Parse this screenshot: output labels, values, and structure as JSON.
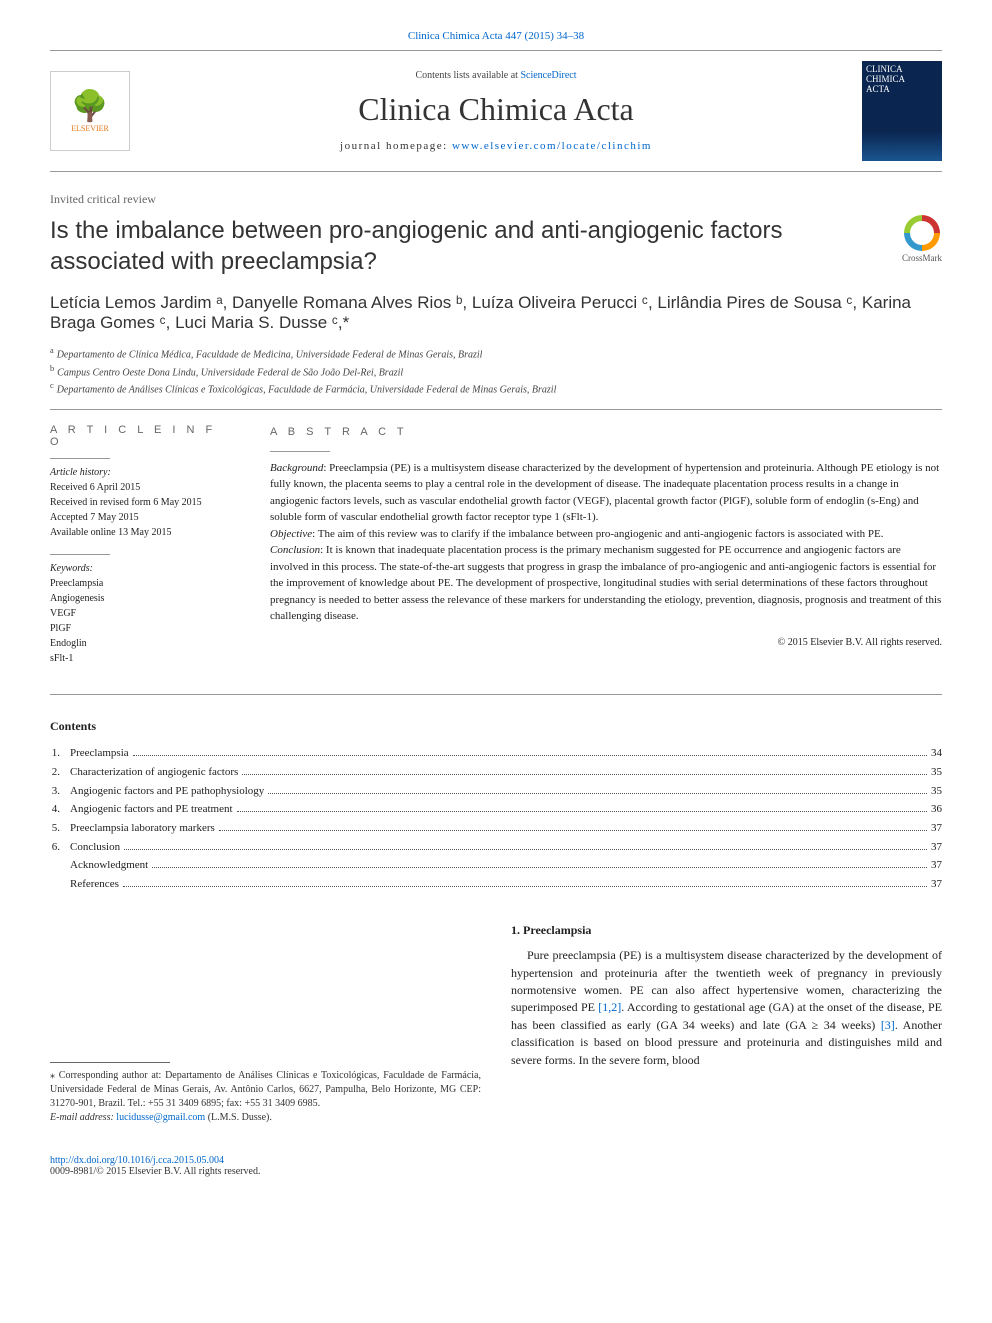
{
  "citation": {
    "text": "Clinica Chimica Acta 447 (2015) 34–38",
    "link_color": "#0066cc"
  },
  "header": {
    "contents_prefix": "Contents lists available at ",
    "contents_link": "ScienceDirect",
    "journal_name": "Clinica Chimica Acta",
    "homepage_prefix": "journal homepage: ",
    "homepage_url": "www.elsevier.com/locate/clinchim",
    "publisher_logo_label": "ELSEVIER",
    "cover_label_line1": "CLINICA",
    "cover_label_line2": "CHIMICA",
    "cover_label_line3": "ACTA"
  },
  "article": {
    "type": "Invited critical review",
    "title": "Is the imbalance between pro-angiogenic and anti-angiogenic factors associated with preeclampsia?",
    "crossmark_label": "CrossMark"
  },
  "authors_line": "Letícia Lemos Jardim ᵃ, Danyelle Romana Alves Rios ᵇ, Luíza Oliveira Perucci ᶜ, Lirlândia Pires de Sousa ᶜ, Karina Braga Gomes ᶜ, Luci Maria S. Dusse ᶜ,*",
  "affiliations": [
    {
      "sup": "a",
      "text": "Departamento de Clínica Médica, Faculdade de Medicina, Universidade Federal de Minas Gerais, Brazil"
    },
    {
      "sup": "b",
      "text": "Campus Centro Oeste Dona Lindu, Universidade Federal de São João Del-Rei, Brazil"
    },
    {
      "sup": "c",
      "text": "Departamento de Análises Clínicas e Toxicológicas, Faculdade de Farmácia, Universidade Federal de Minas Gerais, Brazil"
    }
  ],
  "article_info": {
    "heading": "A R T I C L E   I N F O",
    "history_label": "Article history:",
    "history": [
      "Received 6 April 2015",
      "Received in revised form 6 May 2015",
      "Accepted 7 May 2015",
      "Available online 13 May 2015"
    ],
    "keywords_label": "Keywords:",
    "keywords": [
      "Preeclampsia",
      "Angiogenesis",
      "VEGF",
      "PlGF",
      "Endoglin",
      "sFlt-1"
    ]
  },
  "abstract": {
    "heading": "A B S T R A C T",
    "segments": [
      {
        "label": "Background",
        "text": ": Preeclampsia (PE) is a multisystem disease characterized by the development of hypertension and proteinuria. Although PE etiology is not fully known, the placenta seems to play a central role in the development of disease. The inadequate placentation process results in a change in angiogenic factors levels, such as vascular endothelial growth factor (VEGF), placental growth factor (PlGF), soluble form of endoglin (s-Eng) and soluble form of vascular endothelial growth factor receptor type 1 (sFlt-1)."
      },
      {
        "label": "Objective",
        "text": ": The aim of this review was to clarify if the imbalance between pro-angiogenic and anti-angiogenic factors is associated with PE."
      },
      {
        "label": "Conclusion",
        "text": ": It is known that inadequate placentation process is the primary mechanism suggested for PE occurrence and angiogenic factors are involved in this process. The state-of-the-art suggests that progress in grasp the imbalance of pro-angiogenic and anti-angiogenic factors is essential for the improvement of knowledge about PE. The development of prospective, longitudinal studies with serial determinations of these factors throughout pregnancy is needed to better assess the relevance of these markers for understanding the etiology, prevention, diagnosis, prognosis and treatment of this challenging disease."
      }
    ],
    "copyright": "© 2015 Elsevier B.V. All rights reserved."
  },
  "contents": {
    "heading": "Contents",
    "items": [
      {
        "num": "1.",
        "title": "Preeclampsia",
        "page": "34"
      },
      {
        "num": "2.",
        "title": "Characterization of angiogenic factors",
        "page": "35"
      },
      {
        "num": "3.",
        "title": "Angiogenic factors and PE pathophysiology",
        "page": "35"
      },
      {
        "num": "4.",
        "title": "Angiogenic factors and PE treatment",
        "page": "36"
      },
      {
        "num": "5.",
        "title": "Preeclampsia laboratory markers",
        "page": "37"
      },
      {
        "num": "6.",
        "title": "Conclusion",
        "page": "37"
      },
      {
        "num": "",
        "title": "Acknowledgment",
        "page": "37"
      },
      {
        "num": "",
        "title": "References",
        "page": "37"
      }
    ]
  },
  "body": {
    "section_title": "1. Preeclampsia",
    "paragraph_before_ref1": "Pure preeclampsia (PE) is a multisystem disease characterized by the development of hypertension and proteinuria after the twentieth week of pregnancy in previously normotensive women. PE can also affect hypertensive women, characterizing the superimposed PE ",
    "ref1": "[1,2]",
    "paragraph_before_ref2": ". According to gestational age (GA) at the onset of the disease, PE has been classified as early (GA  34 weeks) and late (GA ≥ 34 weeks) ",
    "ref2": "[3]",
    "paragraph_after": ". Another classification is based on blood pressure and proteinuria and distinguishes mild and severe forms. In the severe form, blood"
  },
  "footnote": {
    "corresponding": "⁎ Corresponding author at: Departamento de Análises Clínicas e Toxicológicas, Faculdade de Farmácia, Universidade Federal de Minas Gerais, Av. Antônio Carlos, 6627, Pampulha, Belo Horizonte, MG CEP: 31270-901, Brazil. Tel.: +55 31 3409 6895; fax: +55 31 3409 6985.",
    "email_label": "E-mail address: ",
    "email": "lucidusse@gmail.com",
    "email_name": " (L.M.S. Dusse)."
  },
  "footer": {
    "doi": "http://dx.doi.org/10.1016/j.cca.2015.05.004",
    "issn_line": "0009-8981/© 2015 Elsevier B.V. All rights reserved."
  },
  "colors": {
    "link": "#0066cc",
    "rule": "#999999",
    "text": "#222222",
    "elsevier_orange": "#e67817",
    "cover_bg_top": "#0a2550",
    "cover_bg_bottom": "#1a5590"
  }
}
